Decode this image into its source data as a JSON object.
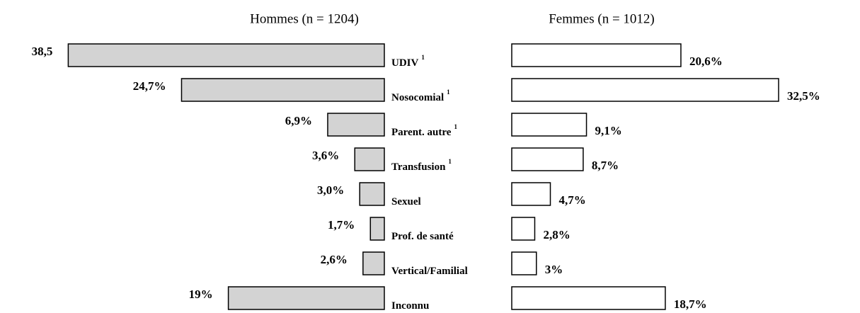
{
  "chart_data": {
    "type": "butterfly-bar",
    "categories": [
      "UDIV",
      "Nosocomial",
      "Parent.  autre",
      "Transfusion",
      "Sexuel",
      "Prof. de santé",
      "Vertical/Familial",
      "Inconnu"
    ],
    "category_notes": [
      "1",
      "1",
      "1",
      "1",
      null,
      null,
      null,
      null
    ],
    "series": [
      {
        "name": "Hommes (n = 1204)",
        "color": "#d3d3d3",
        "values": [
          38.5,
          24.7,
          6.9,
          3.6,
          3.0,
          1.7,
          2.6,
          19
        ],
        "value_labels": [
          "38,5",
          "24,7%",
          "6,9%",
          "3,6%",
          "3,0%",
          "1,7%",
          "2,6%",
          "19%"
        ]
      },
      {
        "name": "Femmes (n = 1012)",
        "color": "#ffffff",
        "values": [
          20.6,
          32.5,
          9.1,
          8.7,
          4.7,
          2.8,
          3,
          18.7
        ],
        "value_labels": [
          "20,6%",
          "32,5%",
          "9,1%",
          "8,7%",
          "4,7%",
          "2,8%",
          "3%",
          "18,7%"
        ]
      }
    ]
  }
}
